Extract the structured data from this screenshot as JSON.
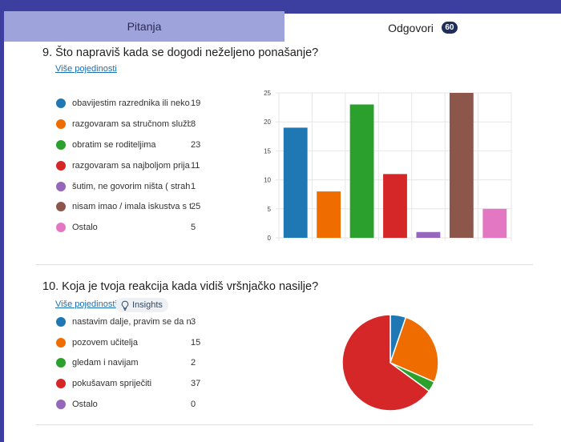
{
  "tabs": [
    {
      "label": "Pitanja"
    },
    {
      "label": "Odgovori",
      "badge": "60"
    }
  ],
  "questions": [
    {
      "title": "9.  Što napraviš kada se dogodi neželjeno ponašanje?",
      "link": "Više pojedinosti",
      "options": [
        {
          "label": "obavijestim razrednika ili neko...",
          "count": "19",
          "color": "#1f77b4"
        },
        {
          "label": "razgovaram sa stručnom služb...",
          "count": "8",
          "color": "#ef6c00"
        },
        {
          "label": "obratim se roditeljima",
          "count": "23",
          "color": "#2ca02c"
        },
        {
          "label": "razgovaram sa najboljom prija...",
          "count": "11",
          "color": "#d62728"
        },
        {
          "label": "šutim, ne govorim ništa ( strah...",
          "count": "1",
          "color": "#9467bd"
        },
        {
          "label": "nisam imao / imala iskustva s t...",
          "count": "25",
          "color": "#8c564b"
        },
        {
          "label": "Ostalo",
          "count": "5",
          "color": "#e377c2"
        }
      ]
    },
    {
      "title": "10.  Koja je tvoja reakcija kada vidiš vršnjačko nasilje?",
      "link": "Više pojedinosti",
      "insights": "Insights",
      "options": [
        {
          "label": "nastavim dalje, pravim se da n...",
          "count": "3",
          "color": "#1f77b4"
        },
        {
          "label": "pozovem učitelja",
          "count": "15",
          "color": "#ef6c00"
        },
        {
          "label": "gledam i navijam",
          "count": "2",
          "color": "#2ca02c"
        },
        {
          "label": "pokušavam spriječiti",
          "count": "37",
          "color": "#d62728"
        },
        {
          "label": "Ostalo",
          "count": "0",
          "color": "#9467bd"
        }
      ]
    }
  ],
  "icons": {
    "insights": "lightbulb-icon"
  },
  "chart_data": [
    {
      "type": "bar",
      "categories": [
        "obavijestim razrednika ili neko...",
        "razgovaram sa stručnom služb...",
        "obratim se roditeljima",
        "razgovaram sa najboljom prija...",
        "šutim, ne govorim ništa ( strah...",
        "nisam imao / imala iskustva s t...",
        "Ostalo"
      ],
      "values": [
        19,
        8,
        23,
        11,
        1,
        25,
        5
      ],
      "colors": [
        "#1f77b4",
        "#ef6c00",
        "#2ca02c",
        "#d62728",
        "#9467bd",
        "#8c564b",
        "#e377c2"
      ],
      "ylim": [
        0,
        25
      ],
      "yticks": [
        "0",
        "5",
        "10",
        "15",
        "20",
        "25"
      ],
      "grid": true
    },
    {
      "type": "pie",
      "categories": [
        "nastavim dalje, pravim se da n...",
        "pozovem učitelja",
        "gledam i navijam",
        "pokušavam spriječiti",
        "Ostalo"
      ],
      "values": [
        3,
        15,
        2,
        37,
        0
      ],
      "colors": [
        "#1f77b4",
        "#ef6c00",
        "#2ca02c",
        "#d62728",
        "#9467bd"
      ]
    }
  ]
}
